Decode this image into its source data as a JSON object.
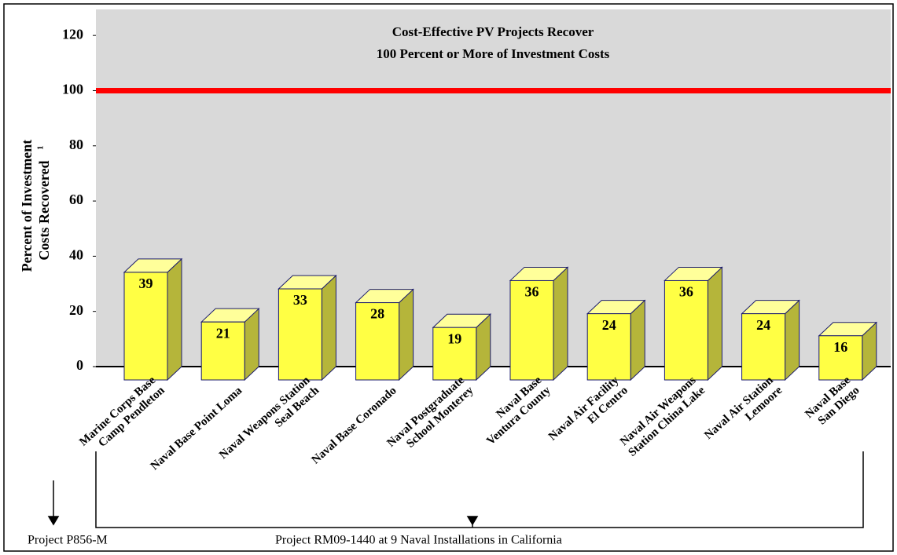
{
  "chart_data": {
    "type": "bar3d",
    "annotation": [
      "Cost-Effective PV Projects Recover",
      "100 Percent or More of Investment Costs"
    ],
    "ylabel": [
      "Percent of Investment",
      "Costs Recovered"
    ],
    "ylabel_footnote": "1",
    "categories": [
      "Marine Corps Base\nCamp Pendleton",
      "Naval Base Point Loma",
      "Naval Weapons Station\nSeal Beach",
      "Naval Base Coronado",
      "Naval Postgraduate\nSchool Monterey",
      "Naval Base\nVentura County",
      "Naval Air Facility\nEl Centro",
      "Naval Air Weapons\nStation China Lake",
      "Naval Air Station\nLemoore",
      "Naval Base\nSan Diego"
    ],
    "values": [
      39,
      21,
      33,
      28,
      19,
      36,
      24,
      36,
      24,
      16
    ],
    "color": "#ffff44",
    "ylim": [
      0,
      130
    ],
    "yticks": [
      0,
      20,
      40,
      60,
      80,
      100,
      120
    ],
    "reference_line": {
      "value": 100,
      "color": "#ff0000"
    },
    "group_labels": [
      "Project P856-M",
      "Project RM09-1440 at 9 Naval Installations in California"
    ]
  }
}
